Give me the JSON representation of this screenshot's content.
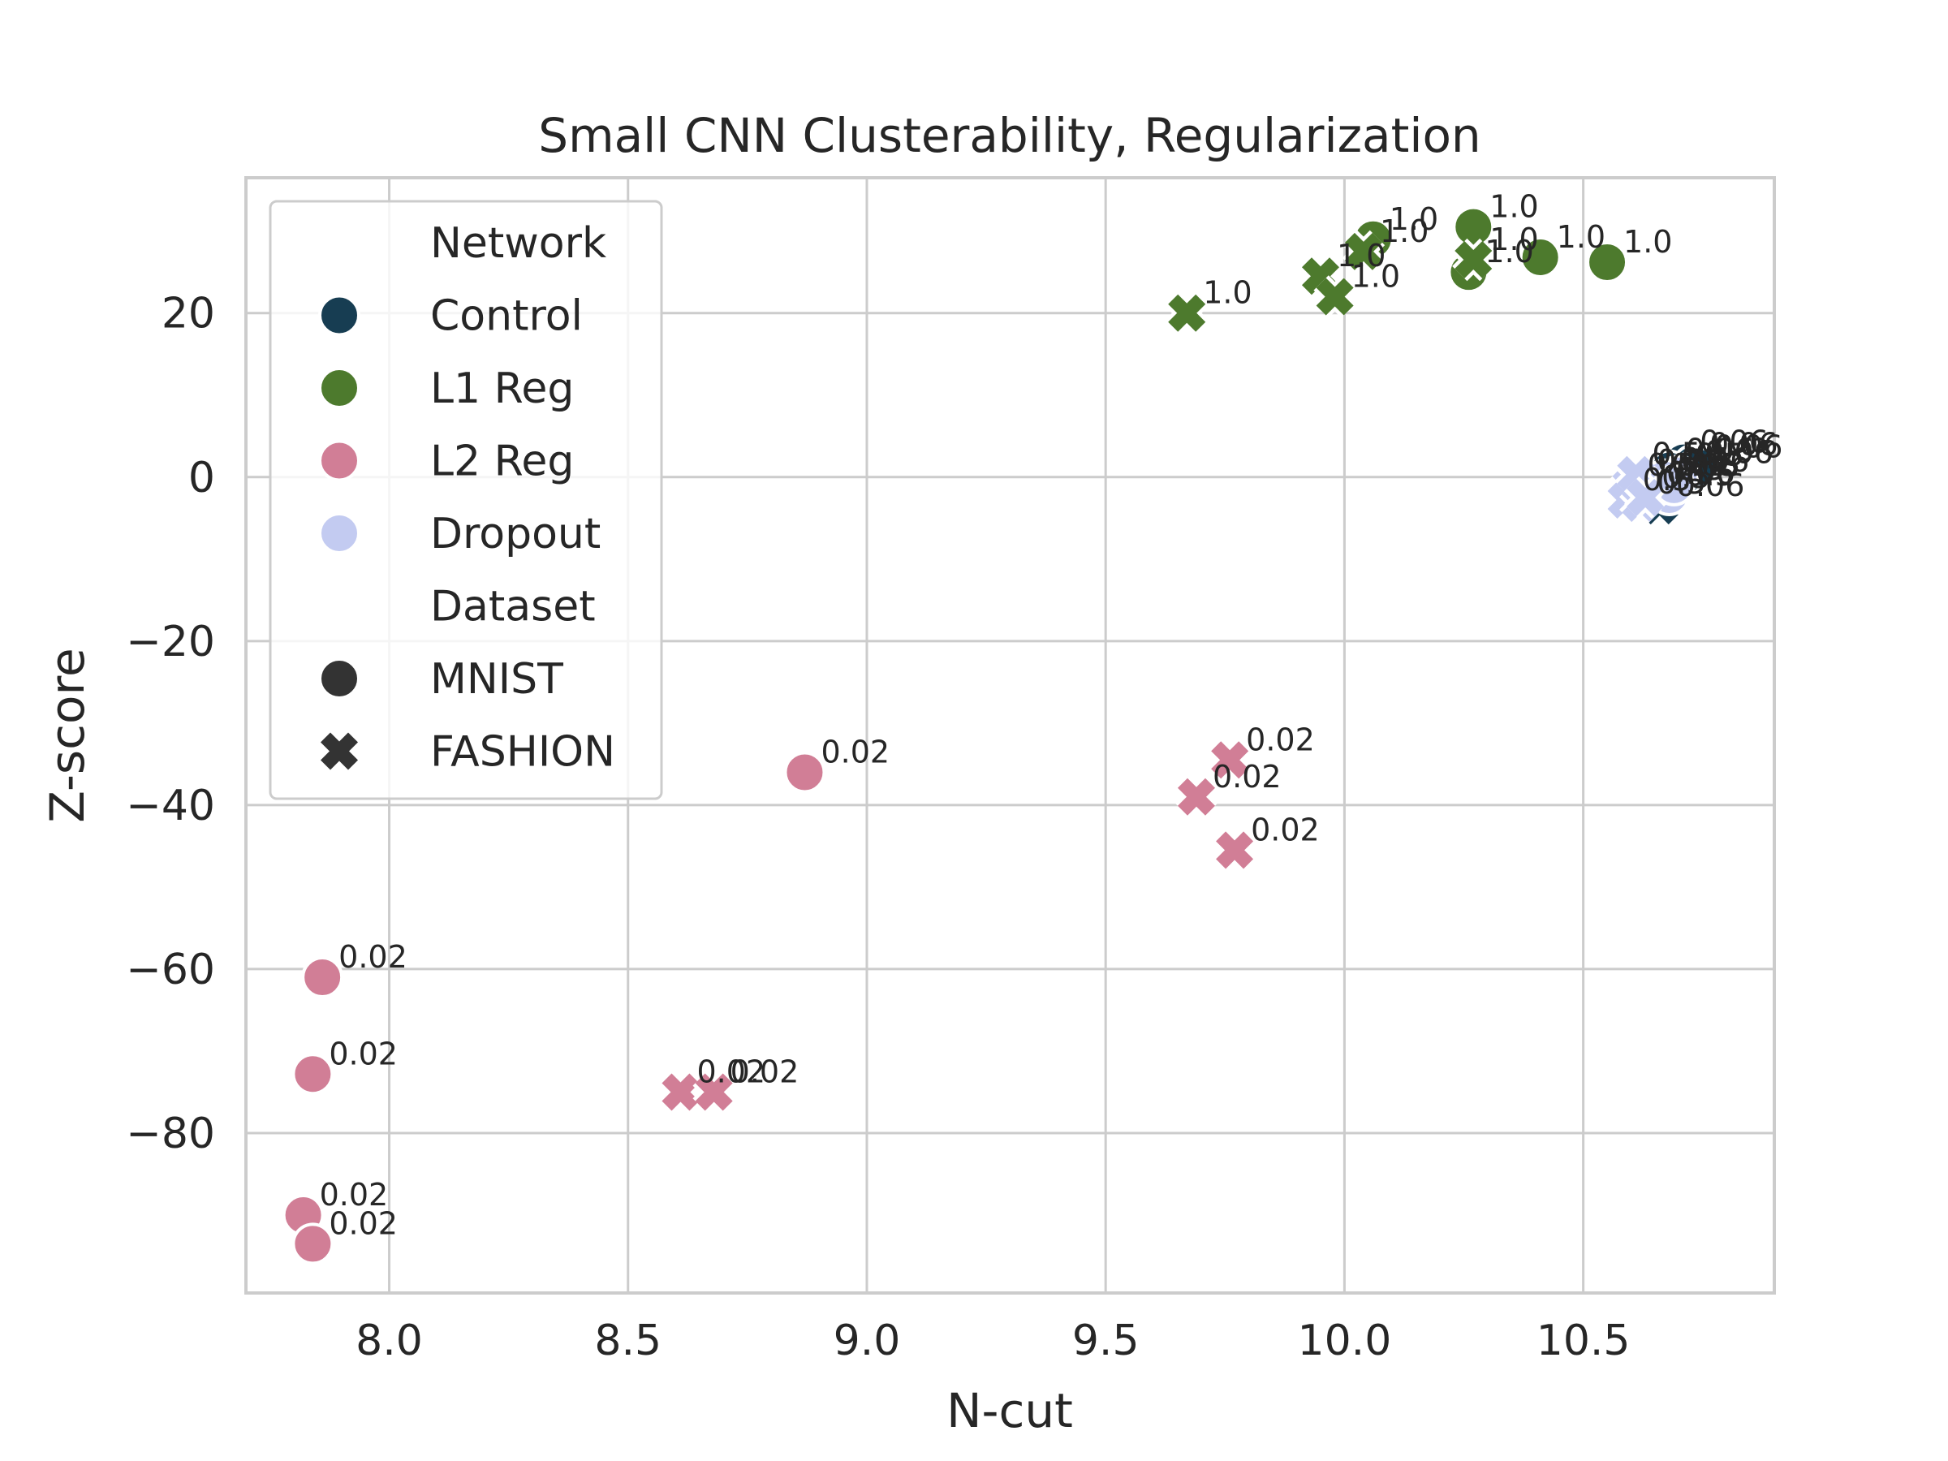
{
  "chart_data": {
    "type": "scatter",
    "title": "Small CNN Clusterability, Regularization",
    "xlabel": "N-cut",
    "ylabel": "Z-score",
    "xlim": [
      7.7,
      10.9
    ],
    "ylim": [
      -99.5,
      36.5
    ],
    "xticks": [
      8.0,
      8.5,
      9.0,
      9.5,
      10.0,
      10.5
    ],
    "xtick_labels": [
      "8.0",
      "8.5",
      "9.0",
      "9.5",
      "10.0",
      "10.5"
    ],
    "yticks": [
      20,
      0,
      -20,
      -40,
      -60,
      -80
    ],
    "ytick_labels": [
      "20",
      "0",
      "−20",
      "−40",
      "−60",
      "−80"
    ],
    "grid": true,
    "legend": {
      "placement": "top-left",
      "network_heading": "Network",
      "networks": [
        {
          "name": "Control",
          "color": "#173d52"
        },
        {
          "name": "L1 Reg",
          "color": "#4d7a2d"
        },
        {
          "name": "L2 Reg",
          "color": "#d17e96"
        },
        {
          "name": "Dropout",
          "color": "#c3cbf1"
        }
      ],
      "dataset_heading": "Dataset",
      "datasets": [
        {
          "name": "MNIST",
          "marker": "circle"
        },
        {
          "name": "FASHION",
          "marker": "x"
        }
      ],
      "marker_color": "#333333"
    },
    "series": [
      {
        "name": "L1 Reg",
        "color": "#4d7a2d",
        "points": [
          {
            "x": 10.06,
            "y": 29.0,
            "dataset": "MNIST",
            "label": "1.0"
          },
          {
            "x": 10.27,
            "y": 30.5,
            "dataset": "MNIST",
            "label": "1.0"
          },
          {
            "x": 10.26,
            "y": 25.0,
            "dataset": "MNIST",
            "label": "1.0"
          },
          {
            "x": 10.41,
            "y": 26.8,
            "dataset": "MNIST",
            "label": "1.0"
          },
          {
            "x": 10.55,
            "y": 26.2,
            "dataset": "MNIST",
            "label": "1.0"
          },
          {
            "x": 9.67,
            "y": 20.0,
            "dataset": "FASHION",
            "label": "1.0"
          },
          {
            "x": 9.95,
            "y": 24.5,
            "dataset": "FASHION",
            "label": "1.0"
          },
          {
            "x": 9.98,
            "y": 22.0,
            "dataset": "FASHION",
            "label": "1.0"
          },
          {
            "x": 10.04,
            "y": 27.5,
            "dataset": "FASHION",
            "label": "1.0"
          },
          {
            "x": 10.27,
            "y": 26.5,
            "dataset": "FASHION",
            "label": "1.0"
          }
        ]
      },
      {
        "name": "L2 Reg",
        "color": "#d17e96",
        "points": [
          {
            "x": 8.87,
            "y": -36.0,
            "dataset": "MNIST",
            "label": "0.02"
          },
          {
            "x": 7.86,
            "y": -61.0,
            "dataset": "MNIST",
            "label": "0.02"
          },
          {
            "x": 7.84,
            "y": -72.8,
            "dataset": "MNIST",
            "label": "0.02"
          },
          {
            "x": 7.82,
            "y": -90.0,
            "dataset": "MNIST",
            "label": "0.02"
          },
          {
            "x": 7.84,
            "y": -93.5,
            "dataset": "MNIST",
            "label": "0.02"
          },
          {
            "x": 9.76,
            "y": -34.5,
            "dataset": "FASHION",
            "label": "0.02"
          },
          {
            "x": 9.69,
            "y": -39.0,
            "dataset": "FASHION",
            "label": "0.02"
          },
          {
            "x": 9.77,
            "y": -45.5,
            "dataset": "FASHION",
            "label": "0.02"
          },
          {
            "x": 8.61,
            "y": -75.0,
            "dataset": "FASHION",
            "label": "0.02"
          },
          {
            "x": 8.68,
            "y": -75.0,
            "dataset": "FASHION",
            "label": "0.02"
          }
        ]
      },
      {
        "name": "Control",
        "color": "#173d52",
        "points": [
          {
            "x": 10.71,
            "y": 1.8,
            "dataset": "MNIST",
            "label": "0.06"
          },
          {
            "x": 10.73,
            "y": 1.5,
            "dataset": "MNIST",
            "label": "0.06"
          },
          {
            "x": 10.72,
            "y": 0.5,
            "dataset": "MNIST",
            "label": "0.06"
          },
          {
            "x": 10.74,
            "y": 1.2,
            "dataset": "MNIST",
            "label": "0.06"
          },
          {
            "x": 10.68,
            "y": 0.8,
            "dataset": "MNIST",
            "label": "0.06"
          },
          {
            "x": 10.62,
            "y": -0.5,
            "dataset": "FASHION",
            "label": "0.06"
          },
          {
            "x": 10.64,
            "y": -2.0,
            "dataset": "FASHION",
            "label": "0.06"
          },
          {
            "x": 10.66,
            "y": -3.5,
            "dataset": "FASHION",
            "label": "0.06"
          },
          {
            "x": 10.65,
            "y": -1.0,
            "dataset": "FASHION",
            "label": "0.06"
          },
          {
            "x": 10.67,
            "y": -0.5,
            "dataset": "FASHION",
            "label": "0.06"
          }
        ]
      },
      {
        "name": "Dropout",
        "color": "#c3cbf1",
        "points": [
          {
            "x": 10.66,
            "y": -1.5,
            "dataset": "MNIST",
            "label": "0.5"
          },
          {
            "x": 10.68,
            "y": -2.2,
            "dataset": "MNIST",
            "label": "0.5"
          },
          {
            "x": 10.7,
            "y": 0.2,
            "dataset": "MNIST",
            "label": "0.5"
          },
          {
            "x": 10.67,
            "y": -0.3,
            "dataset": "MNIST",
            "label": "0.5"
          },
          {
            "x": 10.69,
            "y": -1.0,
            "dataset": "MNIST",
            "label": "0.5"
          },
          {
            "x": 10.6,
            "y": -1.0,
            "dataset": "FASHION",
            "label": "0.5"
          },
          {
            "x": 10.59,
            "y": -2.8,
            "dataset": "FASHION",
            "label": "0.5"
          },
          {
            "x": 10.62,
            "y": -3.2,
            "dataset": "FASHION",
            "label": "0.5"
          },
          {
            "x": 10.61,
            "y": 0.3,
            "dataset": "FASHION",
            "label": "0.5"
          },
          {
            "x": 10.63,
            "y": -2.5,
            "dataset": "FASHION",
            "label": "0.5"
          }
        ]
      }
    ]
  }
}
